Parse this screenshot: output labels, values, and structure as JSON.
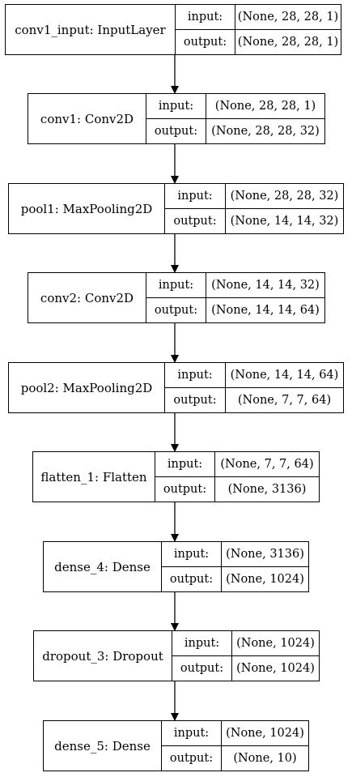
{
  "diagram": {
    "input_label": "input:",
    "output_label": "output:",
    "layers": [
      {
        "name": "conv1_input: InputLayer",
        "input": "(None, 28, 28, 1)",
        "output": "(None, 28, 28, 1)"
      },
      {
        "name": "conv1: Conv2D",
        "input": "(None, 28, 28, 1)",
        "output": "(None, 28, 28, 32)"
      },
      {
        "name": "pool1: MaxPooling2D",
        "input": "(None, 28, 28, 32)",
        "output": "(None, 14, 14, 32)"
      },
      {
        "name": "conv2: Conv2D",
        "input": "(None, 14, 14, 32)",
        "output": "(None, 14, 14, 64)"
      },
      {
        "name": "pool2: MaxPooling2D",
        "input": "(None, 14, 14, 64)",
        "output": "(None, 7, 7, 64)"
      },
      {
        "name": "flatten_1: Flatten",
        "input": "(None, 7, 7, 64)",
        "output": "(None, 3136)"
      },
      {
        "name": "dense_4: Dense",
        "input": "(None, 3136)",
        "output": "(None, 1024)"
      },
      {
        "name": "dropout_3: Dropout",
        "input": "(None, 1024)",
        "output": "(None, 1024)"
      },
      {
        "name": "dense_5: Dense",
        "input": "(None, 1024)",
        "output": "(None, 10)"
      }
    ]
  }
}
